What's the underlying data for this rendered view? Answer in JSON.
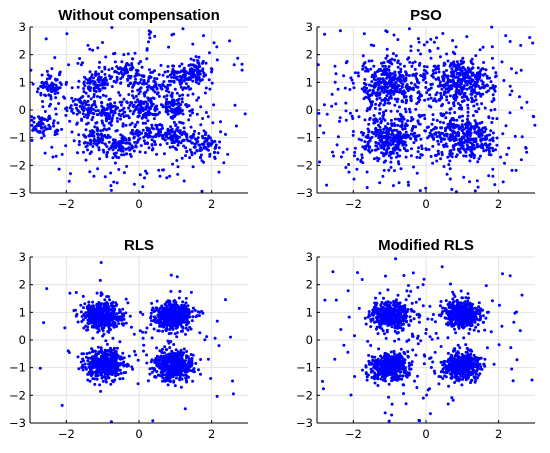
{
  "chart_data": [
    {
      "type": "scatter",
      "title": "Without compensation",
      "xlim": [
        -3,
        3
      ],
      "ylim": [
        -3,
        3
      ],
      "xticks": [
        -2,
        0,
        2
      ],
      "yticks": [
        -3,
        -2,
        -1,
        0,
        1,
        2,
        3
      ],
      "grid": true,
      "legend": "none",
      "color": "#0000ff",
      "distribution": {
        "clusters": [
          [
            -1.2,
            1.0
          ],
          [
            -0.3,
            1.4
          ],
          [
            0.2,
            0.9
          ],
          [
            1.1,
            1.1
          ],
          [
            1.6,
            1.4
          ],
          [
            -1.5,
            0.1
          ],
          [
            -0.8,
            -0.1
          ],
          [
            0.1,
            0.0
          ],
          [
            1.0,
            0.1
          ],
          [
            -1.2,
            -1.0
          ],
          [
            -0.4,
            -1.3
          ],
          [
            0.3,
            -0.9
          ],
          [
            1.1,
            -0.9
          ],
          [
            1.8,
            -1.3
          ],
          [
            -2.4,
            0.8
          ],
          [
            -2.7,
            -0.6
          ]
        ],
        "cluster_spread": 0.22,
        "cluster_points": 70,
        "background_points": 420,
        "background_spread": 1.6
      }
    },
    {
      "type": "scatter",
      "title": "PSO",
      "xlim": [
        -3,
        3
      ],
      "ylim": [
        -3,
        3
      ],
      "xticks": [
        -2,
        0,
        2
      ],
      "yticks": [
        -3,
        -2,
        -1,
        0,
        1,
        2,
        3
      ],
      "grid": true,
      "legend": "none",
      "color": "#0000ff",
      "distribution": {
        "clusters": [
          [
            -1.0,
            1.0
          ],
          [
            1.0,
            1.0
          ],
          [
            -1.0,
            -1.0
          ],
          [
            1.0,
            -1.0
          ]
        ],
        "cluster_spread": 0.42,
        "cluster_points": 300,
        "background_points": 500,
        "background_spread": 1.7
      }
    },
    {
      "type": "scatter",
      "title": "RLS",
      "xlim": [
        -3,
        3
      ],
      "ylim": [
        -3,
        3
      ],
      "xticks": [
        -2,
        0,
        2
      ],
      "yticks": [
        -3,
        -2,
        -1,
        0,
        1,
        2,
        3
      ],
      "grid": true,
      "legend": "none",
      "color": "#0000ff",
      "distribution": {
        "clusters": [
          [
            -1.0,
            0.85
          ],
          [
            0.95,
            0.85
          ],
          [
            -0.95,
            -0.85
          ],
          [
            0.95,
            -0.95
          ]
        ],
        "cluster_spread": 0.27,
        "cluster_points": 460,
        "background_points": 90,
        "background_spread": 1.5
      }
    },
    {
      "type": "scatter",
      "title": "Modified RLS",
      "xlim": [
        -3,
        3
      ],
      "ylim": [
        -3,
        3
      ],
      "xticks": [
        -2,
        0,
        2
      ],
      "yticks": [
        -3,
        -2,
        -1,
        0,
        1,
        2,
        3
      ],
      "grid": true,
      "legend": "none",
      "color": "#0000ff",
      "distribution": {
        "clusters": [
          [
            -1.0,
            0.9
          ],
          [
            1.0,
            0.95
          ],
          [
            -1.0,
            -0.95
          ],
          [
            1.0,
            -0.95
          ]
        ],
        "cluster_spread": 0.25,
        "cluster_points": 420,
        "background_points": 180,
        "background_spread": 1.5
      }
    }
  ]
}
